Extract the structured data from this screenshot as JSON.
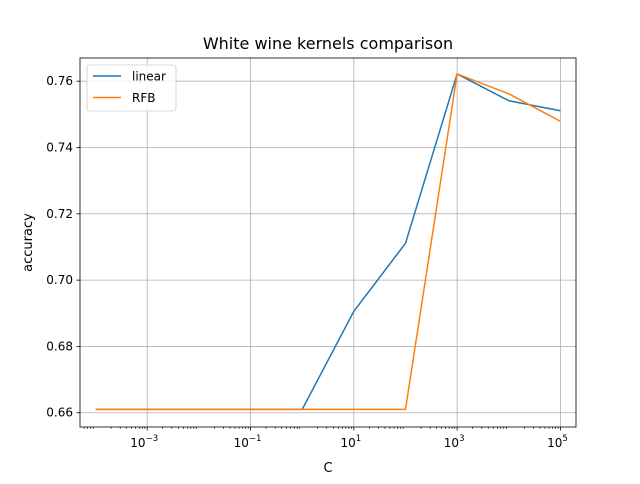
{
  "chart_data": {
    "type": "line",
    "title": "White wine kernels comparison",
    "xlabel": "C",
    "ylabel": "accuracy",
    "x_scale": "log",
    "x": [
      0.0001,
      0.001,
      0.01,
      0.1,
      1,
      10,
      100,
      1000,
      10000,
      100000
    ],
    "xlim": [
      5e-05,
      200000
    ],
    "ylim": [
      0.6557,
      0.767
    ],
    "x_ticks": [
      {
        "value": 0.001,
        "base": "10",
        "exp": "−3"
      },
      {
        "value": 0.1,
        "base": "10",
        "exp": "−1"
      },
      {
        "value": 10,
        "base": "10",
        "exp": "1"
      },
      {
        "value": 1000,
        "base": "10",
        "exp": "3"
      },
      {
        "value": 100000,
        "base": "10",
        "exp": "5"
      }
    ],
    "y_ticks": [
      {
        "value": 0.66,
        "label": "0.66"
      },
      {
        "value": 0.68,
        "label": "0.68"
      },
      {
        "value": 0.7,
        "label": "0.70"
      },
      {
        "value": 0.72,
        "label": "0.72"
      },
      {
        "value": 0.74,
        "label": "0.74"
      },
      {
        "value": 0.76,
        "label": "0.76"
      }
    ],
    "grid": true,
    "legend_position": "top-left",
    "series": [
      {
        "name": "linear",
        "color": "#1f77b4",
        "values": [
          0.661,
          0.661,
          0.661,
          0.661,
          0.661,
          0.6906,
          0.7111,
          0.7622,
          0.7541,
          0.7511
        ]
      },
      {
        "name": "RFB",
        "color": "#ff7f0e",
        "values": [
          0.661,
          0.661,
          0.661,
          0.661,
          0.661,
          0.661,
          0.661,
          0.7622,
          0.7562,
          0.7479
        ]
      }
    ]
  }
}
